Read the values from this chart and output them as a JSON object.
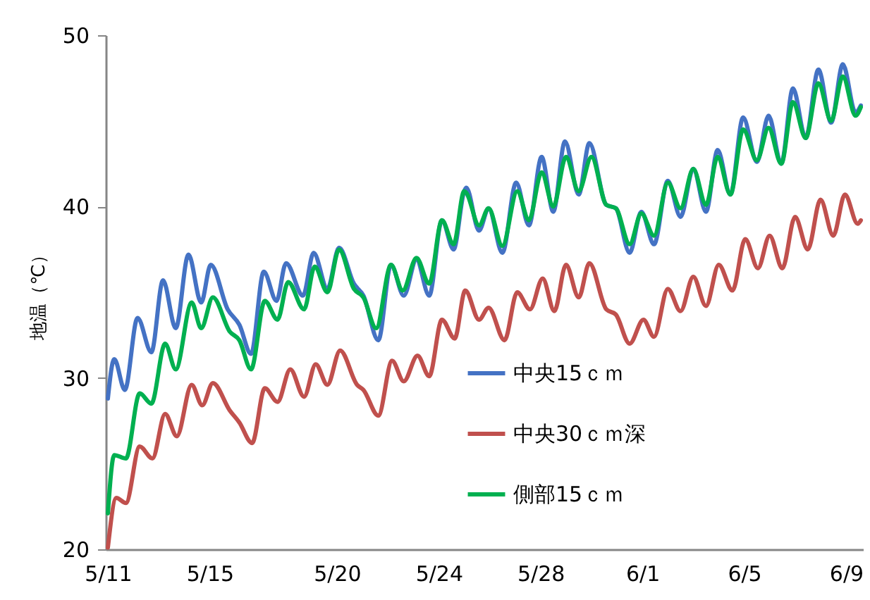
{
  "chart_data": {
    "type": "line",
    "ylabel": "地温（℃）",
    "xlim": [
      "--05-10T22:00",
      "--06-09T16:00"
    ],
    "xticks": [
      {
        "value": "--05-11",
        "label": "5/11"
      },
      {
        "value": "--05-15",
        "label": "5/15"
      },
      {
        "value": "--05-20",
        "label": "5/20"
      },
      {
        "value": "--05-24",
        "label": "5/24"
      },
      {
        "value": "--05-28",
        "label": "5/28"
      },
      {
        "value": "--06-01",
        "label": "6/1"
      },
      {
        "value": "--06-05",
        "label": "6/5"
      },
      {
        "value": "--06-09",
        "label": "6/9"
      }
    ],
    "ylim": [
      20,
      50
    ],
    "yticks": [
      20,
      30,
      40,
      50
    ],
    "legend": "bottom right",
    "line_style": "solid",
    "series": [
      {
        "name": "中央15ｃｍ",
        "color": "#4472c4",
        "x": [
          "--05-11T00:00",
          "--05-11T06:00",
          "--05-11T16:00",
          "--05-12T04:00",
          "--05-12T17:00",
          "--05-13T04:00",
          "--05-13T16:00",
          "--05-14T04:00",
          "--05-14T16:00",
          "--05-15T01:00",
          "--05-15T17:00",
          "--05-16T04:00",
          "--05-16T15:00",
          "--05-17T03:00",
          "--05-17T15:00",
          "--05-18T00:00",
          "--05-18T16:00",
          "--05-19T02:00",
          "--05-19T15:00",
          "--05-20T02:00",
          "--05-20T16:00",
          "--05-21T01:00",
          "--05-21T15:00",
          "--05-22T03:00",
          "--05-22T15:00",
          "--05-23T03:00",
          "--05-23T15:00",
          "--05-24T03:00",
          "--05-24T14:00",
          "--05-25T00:00",
          "--05-25T02:00",
          "--05-25T14:00",
          "--05-25T23:00",
          "--05-26T12:00",
          "--05-27T01:00",
          "--05-27T13:00",
          "--05-28T01:00",
          "--05-28T12:00",
          "--05-28T23:00",
          "--05-29T12:00",
          "--05-29T22:00",
          "--05-30T14:00",
          "--05-30T23:00",
          "--05-31T12:00",
          "--05-31T23:00",
          "--06-01T11:00",
          "--06-02T00:00",
          "--06-02T12:00",
          "--06-03T00:00",
          "--06-03T12:00",
          "--06-03T23:00",
          "--06-04T11:00",
          "--06-04T23:00",
          "--06-05T12:00",
          "--06-05T23:00",
          "--06-06T11:00",
          "--06-06T22:00",
          "--06-07T10:00",
          "--06-07T22:00",
          "--06-08T10:00",
          "--06-08T21:00",
          "--06-09T09:00",
          "--06-09T14:00"
        ],
        "values": [
          28.8,
          31.1,
          29.3,
          33.5,
          31.5,
          35.7,
          32.9,
          37.2,
          34.4,
          36.6,
          34.0,
          33.1,
          31.4,
          36.2,
          34.5,
          36.7,
          34.8,
          37.3,
          35.2,
          37.6,
          35.5,
          34.8,
          32.2,
          36.6,
          34.8,
          36.9,
          34.8,
          39.2,
          37.5,
          40.9,
          41.1,
          38.6,
          39.9,
          37.3,
          41.4,
          38.9,
          42.9,
          39.7,
          43.8,
          40.7,
          43.7,
          40.1,
          39.9,
          37.3,
          39.7,
          37.8,
          41.5,
          39.4,
          42.2,
          39.7,
          43.3,
          40.7,
          45.2,
          42.6,
          45.3,
          42.5,
          46.9,
          44.0,
          48.0,
          44.9,
          48.3,
          45.5,
          45.9
        ]
      },
      {
        "name": "中央30ｃｍ深",
        "color": "#c0504d",
        "x": [
          "--05-11T00:00",
          "--05-11T08:00",
          "--05-11T17:00",
          "--05-12T06:00",
          "--05-12T18:00",
          "--05-13T06:00",
          "--05-13T17:00",
          "--05-14T07:00",
          "--05-14T17:00",
          "--05-15T03:00",
          "--05-15T19:00",
          "--05-16T04:00",
          "--05-16T16:00",
          "--05-17T04:00",
          "--05-17T16:00",
          "--05-18T04:00",
          "--05-18T17:00",
          "--05-19T04:00",
          "--05-19T15:00",
          "--05-20T03:00",
          "--05-20T19:00",
          "--05-21T01:00",
          "--05-21T15:00",
          "--05-22T04:00",
          "--05-22T15:00",
          "--05-23T04:00",
          "--05-23T15:00",
          "--05-24T03:00",
          "--05-24T15:00",
          "--05-25T01:00",
          "--05-25T14:00",
          "--05-25T23:00",
          "--05-26T14:00",
          "--05-27T02:00",
          "--05-27T14:00",
          "--05-28T02:00",
          "--05-28T13:00",
          "--05-29T00:00",
          "--05-29T12:00",
          "--05-29T22:00",
          "--05-30T14:00",
          "--05-30T23:00",
          "--05-31T12:00",
          "--06-01T01:00",
          "--06-01T11:00",
          "--06-02T00:00",
          "--06-02T12:00",
          "--06-03T00:00",
          "--06-03T12:00",
          "--06-04T00:00",
          "--06-04T13:00",
          "--06-05T01:00",
          "--06-05T13:00",
          "--06-06T00:00",
          "--06-06T12:00",
          "--06-07T00:00",
          "--06-07T12:00",
          "--06-08T00:00",
          "--06-08T12:00",
          "--06-08T23:00",
          "--06-09T11:00",
          "--06-09T14:00"
        ],
        "values": [
          20.1,
          23.0,
          22.7,
          26.0,
          25.3,
          27.9,
          26.6,
          29.6,
          28.4,
          29.7,
          28.1,
          27.4,
          26.2,
          29.4,
          28.6,
          30.5,
          28.9,
          30.8,
          29.6,
          31.6,
          29.6,
          29.3,
          27.8,
          31.0,
          29.8,
          31.3,
          30.1,
          33.4,
          32.3,
          35.1,
          33.4,
          34.1,
          32.2,
          35.0,
          34.0,
          35.8,
          33.9,
          36.6,
          34.7,
          36.7,
          34.0,
          33.7,
          32.0,
          33.4,
          32.4,
          35.2,
          33.9,
          35.9,
          34.2,
          36.6,
          35.1,
          38.1,
          36.4,
          38.3,
          36.4,
          39.4,
          37.5,
          40.4,
          38.3,
          40.7,
          39.0,
          39.2
        ]
      },
      {
        "name": "側部15ｃｍ",
        "color": "#00b050",
        "x": [
          "--05-11T00:00",
          "--05-11T06:00",
          "--05-11T17:00",
          "--05-12T06:00",
          "--05-12T17:00",
          "--05-13T06:00",
          "--05-13T16:00",
          "--05-14T07:00",
          "--05-14T16:00",
          "--05-15T03:00",
          "--05-15T19:00",
          "--05-16T04:00",
          "--05-16T15:00",
          "--05-17T04:00",
          "--05-17T16:00",
          "--05-18T02:00",
          "--05-18T17:00",
          "--05-19T03:00",
          "--05-19T15:00",
          "--05-20T02:00",
          "--05-20T16:00",
          "--05-21T01:00",
          "--05-21T13:00",
          "--05-22T03:00",
          "--05-22T14:00",
          "--05-23T03:00",
          "--05-23T15:00",
          "--05-24T03:00",
          "--05-24T14:00",
          "--05-25T00:00",
          "--05-25T02:00",
          "--05-25T14:00",
          "--05-25T23:00",
          "--05-26T12:00",
          "--05-27T02:00",
          "--05-27T13:00",
          "--05-28T01:00",
          "--05-28T12:00",
          "--05-29T00:00",
          "--05-29T12:00",
          "--05-30T00:00",
          "--05-30T14:00",
          "--05-30T23:00",
          "--05-31T12:00",
          "--05-31T23:00",
          "--06-01T11:00",
          "--06-02T00:00",
          "--06-02T12:00",
          "--06-03T00:00",
          "--06-03T12:00",
          "--06-03T23:00",
          "--06-04T11:00",
          "--06-04T23:00",
          "--06-05T12:00",
          "--06-05T23:00",
          "--06-06T11:00",
          "--06-06T22:00",
          "--06-07T10:00",
          "--06-07T22:00",
          "--06-08T10:00",
          "--06-08T21:00",
          "--06-09T09:00",
          "--06-09T14:00"
        ],
        "values": [
          22.1,
          25.5,
          25.3,
          29.1,
          28.5,
          32.0,
          30.5,
          34.4,
          32.9,
          34.7,
          32.7,
          32.2,
          30.5,
          34.5,
          33.4,
          35.6,
          34.0,
          36.5,
          35.0,
          37.5,
          35.2,
          34.7,
          32.9,
          36.6,
          35.1,
          37.0,
          35.5,
          39.2,
          37.8,
          40.9,
          40.8,
          38.9,
          39.9,
          37.7,
          40.9,
          39.2,
          42.0,
          40.0,
          42.9,
          40.9,
          42.9,
          40.1,
          39.9,
          37.8,
          39.6,
          38.3,
          41.4,
          39.9,
          42.2,
          40.1,
          42.9,
          40.7,
          44.5,
          42.7,
          44.6,
          42.5,
          46.1,
          44.0,
          47.2,
          45.0,
          47.6,
          45.3,
          45.8
        ]
      }
    ]
  }
}
